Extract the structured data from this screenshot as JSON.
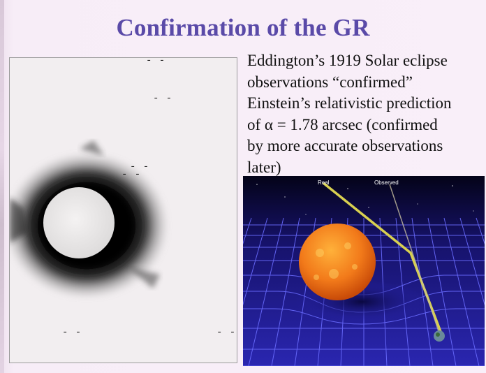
{
  "slide": {
    "title": "Confirmation of the GR",
    "body_text": "Eddington’s 1919 Solar eclipse\nobservations “confirmed”\nEinstein’s relativistic prediction\nof α = 1.78 arcsec (confirmed\nby more accurate observations\nlater)"
  },
  "photo": {
    "star_markers": [
      "- -",
      "- -",
      "- -",
      "- -",
      "- -",
      "- -"
    ]
  },
  "diagram": {
    "label_real": "Real",
    "label_observed": "Observed"
  },
  "colors": {
    "title": "#5a4aa8",
    "grid": "#6a6cff",
    "sun": "#f07a18",
    "light_path": "#d8d050"
  }
}
